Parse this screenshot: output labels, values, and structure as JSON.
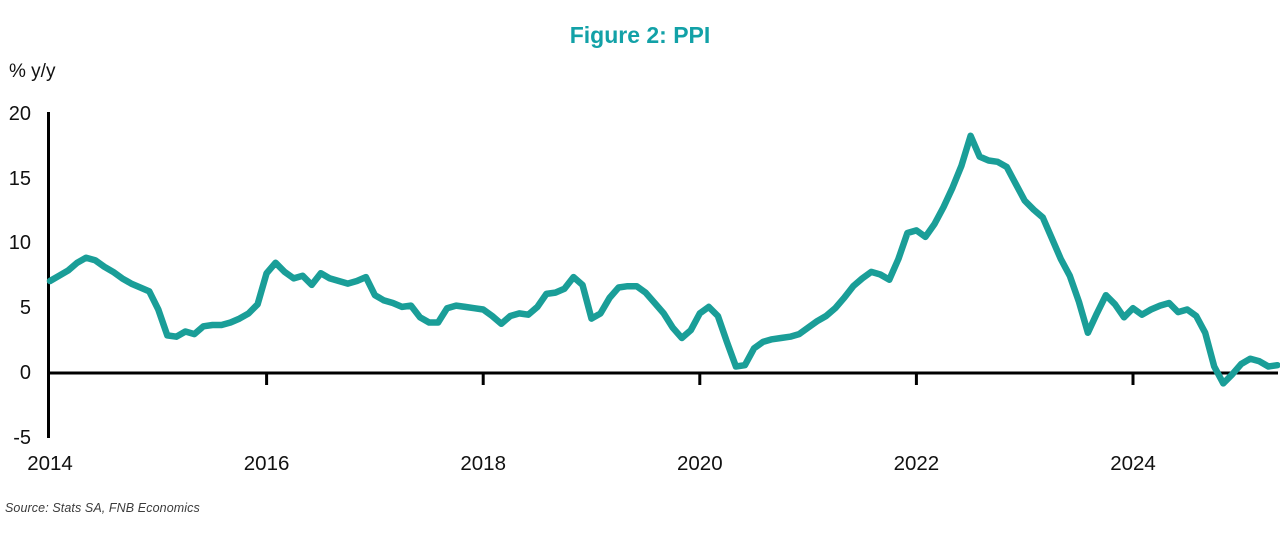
{
  "chart": {
    "title": "Figure 2: PPI",
    "ylabel": "% y/y",
    "source": "Source: Stats SA, FNB Economics"
  },
  "colors": {
    "title_teal": "#12a1a7",
    "line_teal": "#1a9e98",
    "axis_black": "#000000",
    "source_gray": "#3c3c3c"
  },
  "chart_data": {
    "type": "line",
    "title": "Figure 2: PPI",
    "xlabel": "",
    "ylabel": "% y/y",
    "source": "Source: Stats SA, FNB Economics",
    "frequency": "monthly",
    "start": "2014-01",
    "end": "2025-05",
    "grid": false,
    "legend_position": "none",
    "ylim": [
      -5,
      20
    ],
    "yticks": [
      -5,
      0,
      5,
      10,
      15,
      20
    ],
    "xticks": [
      2014,
      2016,
      2018,
      2020,
      2022,
      2024
    ],
    "series": [
      {
        "name": "PPI % y/y",
        "values": [
          7.1,
          7.5,
          7.9,
          8.5,
          8.9,
          8.7,
          8.2,
          7.8,
          7.3,
          6.9,
          6.6,
          6.3,
          4.9,
          2.9,
          2.8,
          3.2,
          3.0,
          3.6,
          3.7,
          3.7,
          3.9,
          4.2,
          4.6,
          5.3,
          7.7,
          8.5,
          7.8,
          7.3,
          7.5,
          6.8,
          7.7,
          7.3,
          7.1,
          6.9,
          7.1,
          7.4,
          6.0,
          5.6,
          5.4,
          5.1,
          5.2,
          4.3,
          3.9,
          3.9,
          5.0,
          5.2,
          5.1,
          5.0,
          4.9,
          4.4,
          3.8,
          4.4,
          4.6,
          4.5,
          5.1,
          6.1,
          6.2,
          6.5,
          7.4,
          6.8,
          4.2,
          4.6,
          5.8,
          6.6,
          6.7,
          6.7,
          6.2,
          5.4,
          4.6,
          3.5,
          2.7,
          3.3,
          4.6,
          5.1,
          4.4,
          2.4,
          0.5,
          0.6,
          1.9,
          2.4,
          2.6,
          2.7,
          2.8,
          3.0,
          3.5,
          4.0,
          4.4,
          5.0,
          5.8,
          6.7,
          7.3,
          7.8,
          7.6,
          7.2,
          8.8,
          10.8,
          11.0,
          10.5,
          11.5,
          12.8,
          14.3,
          16.0,
          18.3,
          16.7,
          16.4,
          16.3,
          15.9,
          14.6,
          13.3,
          12.6,
          12.0,
          10.4,
          8.8,
          7.5,
          5.5,
          3.1,
          4.6,
          6.0,
          5.3,
          4.3,
          5.0,
          4.5,
          4.9,
          5.2,
          5.4,
          4.7,
          4.9,
          4.4,
          3.1,
          0.5,
          -0.8,
          -0.1,
          0.7,
          1.1,
          0.9,
          0.5,
          0.6
        ]
      }
    ]
  }
}
